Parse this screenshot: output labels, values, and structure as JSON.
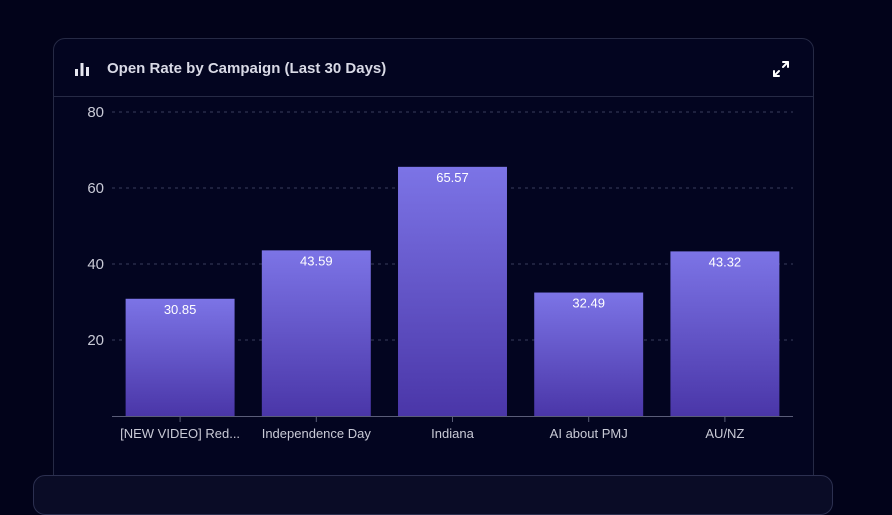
{
  "card": {
    "title": "Open Rate by Campaign (Last 30 Days)"
  },
  "icons": {
    "title_icon": "bar-chart-icon",
    "expand_icon": "expand-icon"
  },
  "colors": {
    "background": "#02031a",
    "bar_top": "#7c74e6",
    "bar_bottom": "#4a36a8",
    "grid": "#3a3d5c",
    "axis_text": "#c9cad6",
    "label_text": "#ffffff"
  },
  "chart_data": {
    "type": "bar",
    "title": "Open Rate by Campaign (Last 30 Days)",
    "categories": [
      "[NEW VIDEO] Red...",
      "Independence Day",
      "Indiana",
      "AI about PMJ",
      "AU/NZ"
    ],
    "values": [
      30.85,
      43.59,
      65.57,
      32.49,
      43.32
    ],
    "value_labels": [
      "30.85",
      "43.59",
      "65.57",
      "32.49",
      "43.32"
    ],
    "yticks": [
      20,
      40,
      60,
      80
    ],
    "ytick_labels": [
      "20",
      "40",
      "60",
      "80"
    ],
    "ylim": [
      0,
      80
    ],
    "grid": true,
    "legend": "none",
    "xlabel": "",
    "ylabel": ""
  }
}
